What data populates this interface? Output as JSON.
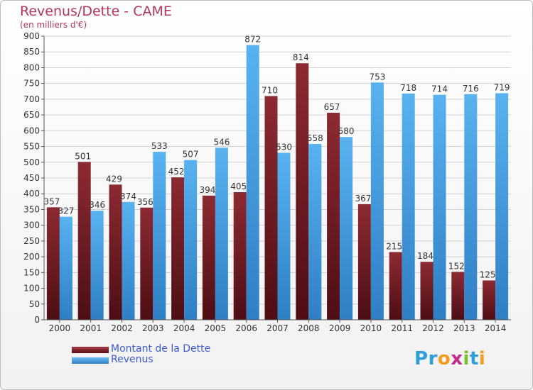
{
  "chart_data": {
    "type": "bar",
    "title": "Revenus/Dette - CAME",
    "subtitle": "(en milliers d'€)",
    "categories": [
      "2000",
      "2001",
      "2002",
      "2003",
      "2004",
      "2005",
      "2006",
      "2007",
      "2008",
      "2009",
      "2010",
      "2011",
      "2012",
      "2013",
      "2014"
    ],
    "series": [
      {
        "name": "Montant de la Dette",
        "color": "#7f1d27",
        "values": [
          357,
          501,
          429,
          356,
          452,
          394,
          405,
          710,
          814,
          657,
          367,
          215,
          184,
          152,
          125
        ]
      },
      {
        "name": "Revenus",
        "color": "#4aa3e6",
        "values": [
          327,
          346,
          374,
          533,
          507,
          546,
          872,
          530,
          558,
          580,
          753,
          718,
          714,
          716,
          719
        ]
      }
    ],
    "ylim": [
      0,
      900
    ],
    "yticks": [
      0,
      50,
      100,
      150,
      200,
      250,
      300,
      350,
      400,
      450,
      500,
      550,
      600,
      650,
      700,
      750,
      800,
      850,
      900
    ],
    "grid": true,
    "legend_position": "bottom-left"
  },
  "logo": {
    "text": "Proxiti",
    "letters": [
      "P",
      "r",
      "o",
      "x",
      "i",
      "t",
      "i"
    ],
    "colors": [
      "#2e9fd8",
      "#2e9fd8",
      "#f39c1f",
      "#c42a8c",
      "#7bbf2a",
      "#2e9fd8",
      "#f39c1f"
    ]
  }
}
